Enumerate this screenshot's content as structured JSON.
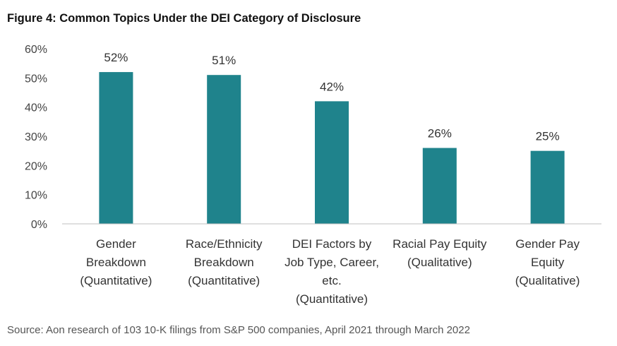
{
  "title": "Figure 4: Common Topics Under the DEI Category of Disclosure",
  "source": "Source: Aon research of 103 10-K filings from S&P 500 companies, April 2021 through March 2022",
  "colors": {
    "bar": "#1f838c",
    "axis": "#bfbfbf"
  },
  "chart_data": {
    "type": "bar",
    "title": "Figure 4: Common Topics Under the DEI Category of Disclosure",
    "xlabel": "",
    "ylabel": "",
    "ylim": [
      0,
      60
    ],
    "yticks": [
      "0%",
      "10%",
      "20%",
      "30%",
      "40%",
      "50%",
      "60%"
    ],
    "yticks_values": [
      0,
      10,
      20,
      30,
      40,
      50,
      60
    ],
    "grid": false,
    "categories": [
      [
        "Gender",
        "Breakdown",
        "(Quantitative)"
      ],
      [
        "Race/Ethnicity",
        "Breakdown",
        "(Quantitative)"
      ],
      [
        "DEI Factors by",
        "Job Type, Career,",
        "etc.",
        "(Quantitative)"
      ],
      [
        "Racial Pay Equity",
        "(Qualitative)"
      ],
      [
        "Gender Pay",
        "Equity",
        "(Qualitative)"
      ]
    ],
    "values": [
      52,
      51,
      42,
      26,
      25
    ],
    "data_labels": [
      "52%",
      "51%",
      "42%",
      "26%",
      "25%"
    ]
  }
}
